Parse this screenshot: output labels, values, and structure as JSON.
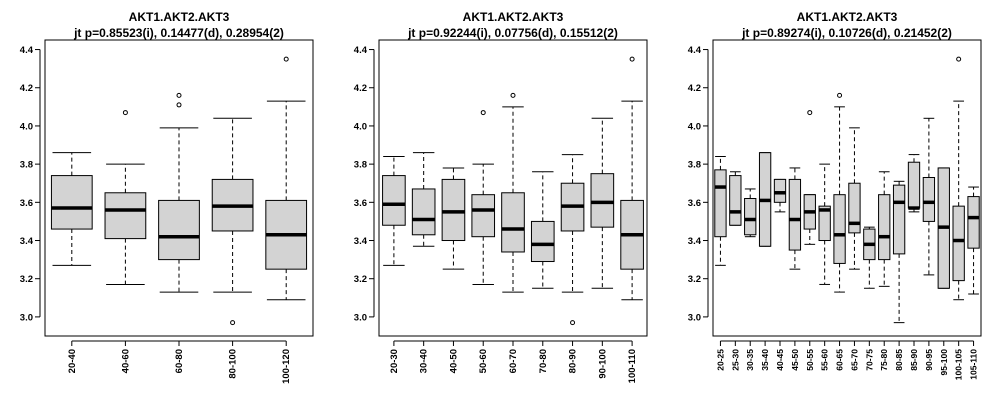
{
  "chart_data": [
    {
      "type": "box",
      "title": "AKT1.AKT2.AKT3",
      "subtitle": "jt p=0.85523(i), 0.14477(d), 0.28954(2)",
      "ylim": [
        2.9,
        4.45
      ],
      "yticks": [
        "3.0",
        "3.2",
        "3.4",
        "3.6",
        "3.8",
        "4.0",
        "4.2",
        "4.4"
      ],
      "categories": [
        "20-40",
        "40-60",
        "60-80",
        "80-100",
        "100-120"
      ],
      "boxes": [
        {
          "whisker_low": 3.27,
          "q1": 3.46,
          "median": 3.57,
          "q3": 3.74,
          "whisker_high": 3.86,
          "outliers": []
        },
        {
          "whisker_low": 3.17,
          "q1": 3.41,
          "median": 3.56,
          "q3": 3.65,
          "whisker_high": 3.8,
          "outliers": [
            4.07
          ]
        },
        {
          "whisker_low": 3.13,
          "q1": 3.3,
          "median": 3.42,
          "q3": 3.61,
          "whisker_high": 3.99,
          "outliers": [
            4.11,
            4.16
          ]
        },
        {
          "whisker_low": 3.13,
          "q1": 3.45,
          "median": 3.58,
          "q3": 3.72,
          "whisker_high": 4.04,
          "outliers": [
            2.97
          ]
        },
        {
          "whisker_low": 3.09,
          "q1": 3.25,
          "median": 3.43,
          "q3": 3.61,
          "whisker_high": 4.13,
          "outliers": [
            4.35
          ]
        }
      ]
    },
    {
      "type": "box",
      "title": "AKT1.AKT2.AKT3",
      "subtitle": "jt p=0.92244(i), 0.07756(d), 0.15512(2)",
      "ylim": [
        2.9,
        4.45
      ],
      "yticks": [
        "3.0",
        "3.2",
        "3.4",
        "3.6",
        "3.8",
        "4.0",
        "4.2",
        "4.4"
      ],
      "categories": [
        "20-30",
        "30-40",
        "40-50",
        "50-60",
        "60-70",
        "70-80",
        "80-90",
        "90-100",
        "100-110"
      ],
      "boxes": [
        {
          "whisker_low": 3.27,
          "q1": 3.48,
          "median": 3.59,
          "q3": 3.74,
          "whisker_high": 3.84,
          "outliers": []
        },
        {
          "whisker_low": 3.37,
          "q1": 3.43,
          "median": 3.51,
          "q3": 3.67,
          "whisker_high": 3.86,
          "outliers": []
        },
        {
          "whisker_low": 3.25,
          "q1": 3.4,
          "median": 3.55,
          "q3": 3.72,
          "whisker_high": 3.78,
          "outliers": []
        },
        {
          "whisker_low": 3.17,
          "q1": 3.42,
          "median": 3.56,
          "q3": 3.64,
          "whisker_high": 3.8,
          "outliers": [
            4.07
          ]
        },
        {
          "whisker_low": 3.13,
          "q1": 3.34,
          "median": 3.46,
          "q3": 3.65,
          "whisker_high": 4.1,
          "outliers": [
            4.16
          ]
        },
        {
          "whisker_low": 3.15,
          "q1": 3.29,
          "median": 3.38,
          "q3": 3.5,
          "whisker_high": 3.76,
          "outliers": []
        },
        {
          "whisker_low": 3.13,
          "q1": 3.45,
          "median": 3.58,
          "q3": 3.7,
          "whisker_high": 3.85,
          "outliers": [
            2.97
          ]
        },
        {
          "whisker_low": 3.15,
          "q1": 3.47,
          "median": 3.6,
          "q3": 3.75,
          "whisker_high": 4.04,
          "outliers": []
        },
        {
          "whisker_low": 3.09,
          "q1": 3.25,
          "median": 3.43,
          "q3": 3.61,
          "whisker_high": 4.13,
          "outliers": [
            4.35
          ]
        }
      ]
    },
    {
      "type": "box",
      "title": "AKT1.AKT2.AKT3",
      "subtitle": "jt p=0.89274(i), 0.10726(d), 0.21452(2)",
      "ylim": [
        2.9,
        4.45
      ],
      "yticks": [
        "3.0",
        "3.2",
        "3.4",
        "3.6",
        "3.8",
        "4.0",
        "4.2",
        "4.4"
      ],
      "categories": [
        "20-25",
        "25-30",
        "30-35",
        "35-40",
        "40-45",
        "45-50",
        "50-55",
        "55-60",
        "60-65",
        "65-70",
        "70-75",
        "75-80",
        "80-85",
        "85-90",
        "90-95",
        "95-100",
        "100-105",
        "105-110"
      ],
      "boxes": [
        {
          "whisker_low": 3.27,
          "q1": 3.42,
          "median": 3.68,
          "q3": 3.77,
          "whisker_high": 3.84,
          "outliers": []
        },
        {
          "whisker_low": 3.48,
          "q1": 3.48,
          "median": 3.55,
          "q3": 3.74,
          "whisker_high": 3.76,
          "outliers": []
        },
        {
          "whisker_low": 3.42,
          "q1": 3.43,
          "median": 3.51,
          "q3": 3.62,
          "whisker_high": 3.67,
          "outliers": []
        },
        {
          "whisker_low": 3.37,
          "q1": 3.37,
          "median": 3.61,
          "q3": 3.86,
          "whisker_high": 3.86,
          "outliers": []
        },
        {
          "whisker_low": 3.55,
          "q1": 3.6,
          "median": 3.65,
          "q3": 3.72,
          "whisker_high": 3.72,
          "outliers": []
        },
        {
          "whisker_low": 3.25,
          "q1": 3.35,
          "median": 3.51,
          "q3": 3.72,
          "whisker_high": 3.78,
          "outliers": []
        },
        {
          "whisker_low": 3.38,
          "q1": 3.46,
          "median": 3.55,
          "q3": 3.64,
          "whisker_high": 3.64,
          "outliers": [
            4.07
          ]
        },
        {
          "whisker_low": 3.17,
          "q1": 3.4,
          "median": 3.56,
          "q3": 3.58,
          "whisker_high": 3.8,
          "outliers": []
        },
        {
          "whisker_low": 3.13,
          "q1": 3.28,
          "median": 3.43,
          "q3": 3.64,
          "whisker_high": 4.1,
          "outliers": [
            4.16
          ]
        },
        {
          "whisker_low": 3.25,
          "q1": 3.44,
          "median": 3.49,
          "q3": 3.7,
          "whisker_high": 3.99,
          "outliers": []
        },
        {
          "whisker_low": 3.15,
          "q1": 3.3,
          "median": 3.38,
          "q3": 3.46,
          "whisker_high": 3.47,
          "outliers": []
        },
        {
          "whisker_low": 3.16,
          "q1": 3.3,
          "median": 3.42,
          "q3": 3.64,
          "whisker_high": 3.76,
          "outliers": []
        },
        {
          "whisker_low": 2.97,
          "q1": 3.33,
          "median": 3.6,
          "q3": 3.69,
          "whisker_high": 3.71,
          "outliers": []
        },
        {
          "whisker_low": 3.55,
          "q1": 3.57,
          "median": 3.57,
          "q3": 3.81,
          "whisker_high": 3.85,
          "outliers": []
        },
        {
          "whisker_low": 3.22,
          "q1": 3.5,
          "median": 3.6,
          "q3": 3.73,
          "whisker_high": 4.04,
          "outliers": []
        },
        {
          "whisker_low": 3.15,
          "q1": 3.15,
          "median": 3.47,
          "q3": 3.78,
          "whisker_high": 3.78,
          "outliers": []
        },
        {
          "whisker_low": 3.09,
          "q1": 3.19,
          "median": 3.4,
          "q3": 3.58,
          "whisker_high": 4.13,
          "outliers": [
            4.35
          ]
        },
        {
          "whisker_low": 3.12,
          "q1": 3.36,
          "median": 3.52,
          "q3": 3.63,
          "whisker_high": 3.68,
          "outliers": []
        }
      ]
    }
  ]
}
